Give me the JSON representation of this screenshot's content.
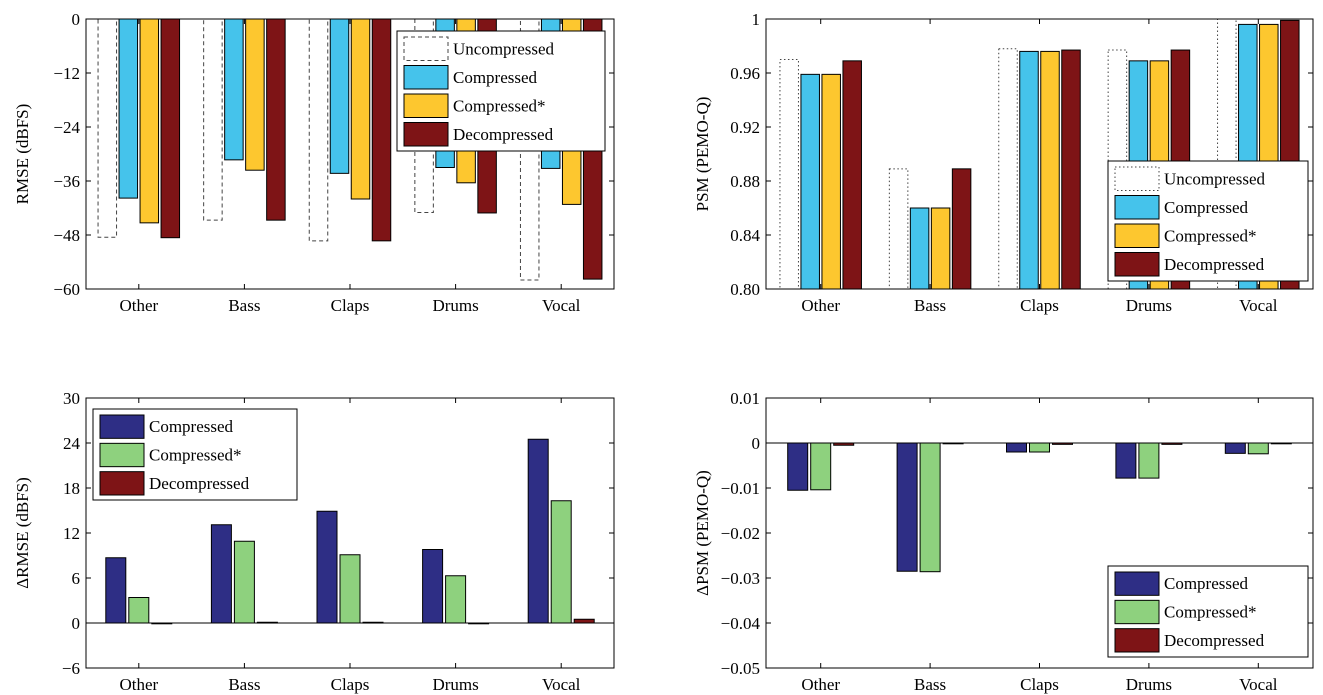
{
  "colors": {
    "compressed": "#45c3eb",
    "compressed_star": "#fdc72f",
    "decompressed": "#7e1416",
    "delta_compressed": "#2e2e85",
    "delta_compressed_star": "#8ed17e",
    "delta_decompressed": "#7e1416"
  },
  "chart_data": [
    {
      "type": "bar",
      "categories": [
        "Other",
        "Bass",
        "Claps",
        "Drums",
        "Vocal"
      ],
      "ylabel": "RMSE (dBFS)",
      "ylim": [
        -60,
        0
      ],
      "yticks": [
        0,
        -12,
        -24,
        -36,
        -48,
        -60
      ],
      "ytick_labels": [
        "0",
        "−12",
        "−24",
        "−36",
        "−48",
        "−60"
      ],
      "legend_position": "top-right",
      "series": [
        {
          "name": "Uncompressed",
          "style": "dashed",
          "values": [
            -48.5,
            -44.7,
            -49.3,
            -43.0,
            -58.0
          ]
        },
        {
          "name": "Compressed",
          "values": [
            -39.8,
            -31.3,
            -34.3,
            -33.0,
            -33.2
          ]
        },
        {
          "name": "Compressed*",
          "values": [
            -45.3,
            -33.6,
            -40.0,
            -36.4,
            -41.2
          ]
        },
        {
          "name": "Decompressed",
          "values": [
            -48.6,
            -44.7,
            -49.3,
            -43.1,
            -57.8
          ]
        }
      ]
    },
    {
      "type": "bar",
      "categories": [
        "Other",
        "Bass",
        "Claps",
        "Drums",
        "Vocal"
      ],
      "ylabel": "PSM (PEMO-Q)",
      "ylim": [
        0.8,
        1.0
      ],
      "yticks": [
        0.8,
        0.84,
        0.88,
        0.92,
        0.96,
        1.0
      ],
      "ytick_labels": [
        "0.80",
        "0.84",
        "0.88",
        "0.92",
        "0.96",
        "1"
      ],
      "legend_position": "bottom-right",
      "series": [
        {
          "name": "Uncompressed",
          "style": "dotted",
          "values": [
            0.97,
            0.889,
            0.978,
            0.977,
            1.0
          ]
        },
        {
          "name": "Compressed",
          "values": [
            0.959,
            0.86,
            0.976,
            0.969,
            0.996
          ]
        },
        {
          "name": "Compressed*",
          "values": [
            0.959,
            0.86,
            0.976,
            0.969,
            0.996
          ]
        },
        {
          "name": "Decompressed",
          "values": [
            0.969,
            0.889,
            0.977,
            0.977,
            0.999
          ]
        }
      ]
    },
    {
      "type": "bar",
      "categories": [
        "Other",
        "Bass",
        "Claps",
        "Drums",
        "Vocal"
      ],
      "ylabel": "ΔRMSE (dBFS)",
      "ylim": [
        -6,
        30
      ],
      "yticks": [
        -6,
        0,
        6,
        12,
        18,
        24,
        30
      ],
      "ytick_labels": [
        "−6",
        "0",
        "6",
        "12",
        "18",
        "24",
        "30"
      ],
      "legend_position": "top-left",
      "series": [
        {
          "name": "Compressed",
          "values": [
            8.7,
            13.1,
            14.9,
            9.8,
            24.5
          ]
        },
        {
          "name": "Compressed*",
          "values": [
            3.4,
            10.9,
            9.1,
            6.3,
            16.3
          ]
        },
        {
          "name": "Decompressed",
          "values": [
            0.0,
            0.1,
            0.1,
            0.0,
            0.5
          ]
        }
      ]
    },
    {
      "type": "bar",
      "categories": [
        "Other",
        "Bass",
        "Claps",
        "Drums",
        "Vocal"
      ],
      "ylabel": "ΔPSM (PEMO-Q)",
      "ylim": [
        -0.05,
        0.01
      ],
      "yticks": [
        0.01,
        0,
        -0.01,
        -0.02,
        -0.03,
        -0.04,
        -0.05
      ],
      "ytick_labels": [
        "0.01",
        "0",
        "−0.01",
        "−0.02",
        "−0.03",
        "−0.04",
        "−0.05"
      ],
      "legend_position": "bottom-right",
      "series": [
        {
          "name": "Compressed",
          "values": [
            -0.0105,
            -0.0285,
            -0.002,
            -0.0078,
            -0.0023
          ]
        },
        {
          "name": "Compressed*",
          "values": [
            -0.0104,
            -0.0286,
            -0.002,
            -0.0078,
            -0.0024
          ]
        },
        {
          "name": "Decompressed",
          "values": [
            -0.0005,
            -0.0001,
            -0.0003,
            -0.0003,
            -0.0001
          ]
        }
      ]
    }
  ]
}
